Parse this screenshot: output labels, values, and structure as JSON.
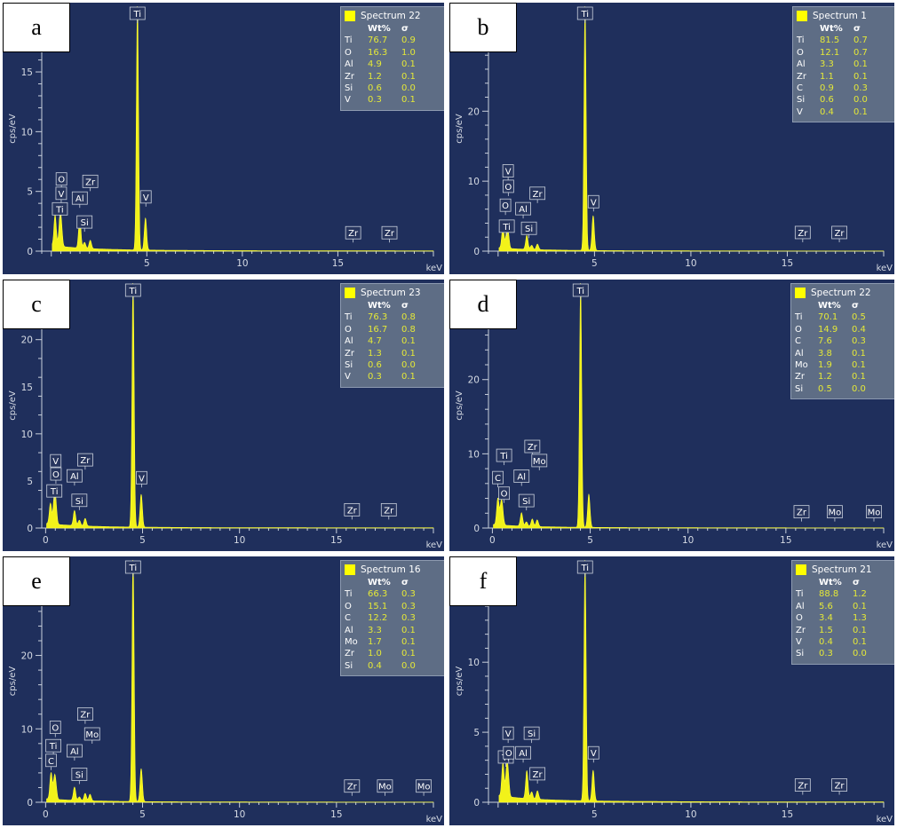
{
  "legend_header": {
    "wt": "Wt%",
    "sigma": "σ"
  },
  "chart_data": [
    {
      "panel": "a",
      "type": "line",
      "ylabel": "cps/eV",
      "xlabel": "keV",
      "xlim": [
        -0.5,
        20
      ],
      "ylim": [
        0,
        20.5
      ],
      "xticks": [
        5,
        10,
        15
      ],
      "yticks": [
        0,
        5,
        10,
        15
      ],
      "spectrum": "Spectrum 22",
      "composition": [
        {
          "el": "Ti",
          "wt": "76.7",
          "sigma": "0.9"
        },
        {
          "el": "O",
          "wt": "16.3",
          "sigma": "1.0"
        },
        {
          "el": "Al",
          "wt": "4.9",
          "sigma": "0.1"
        },
        {
          "el": "Zr",
          "wt": "1.2",
          "sigma": "0.1"
        },
        {
          "el": "Si",
          "wt": "0.6",
          "sigma": "0.0"
        },
        {
          "el": "V",
          "wt": "0.3",
          "sigma": "0.1"
        }
      ],
      "peaks": [
        {
          "x": 0.2,
          "y": 2.6
        },
        {
          "x": 0.45,
          "y": 2.0
        },
        {
          "x": 0.52,
          "y": 1.5
        },
        {
          "x": 1.49,
          "y": 2.6
        },
        {
          "x": 1.74,
          "y": 0.5
        },
        {
          "x": 2.04,
          "y": 0.7
        },
        {
          "x": 4.51,
          "y": 20.5
        },
        {
          "x": 4.93,
          "y": 2.7
        }
      ],
      "labels": [
        {
          "t": "Ti",
          "x": 4.51,
          "y": 20.5
        },
        {
          "t": "O",
          "x": 0.53,
          "y": 5.3
        },
        {
          "t": "Ti",
          "x": 0.45,
          "y": 2.8
        },
        {
          "t": "V",
          "x": 0.52,
          "y": 4.1
        },
        {
          "t": "Al",
          "x": 1.49,
          "y": 3.7
        },
        {
          "t": "Si",
          "x": 1.74,
          "y": 1.7
        },
        {
          "t": "Zr",
          "x": 2.04,
          "y": 5.1
        },
        {
          "t": "V",
          "x": 4.95,
          "y": 3.8
        },
        {
          "t": "Zr",
          "x": 15.8,
          "y": 0.8
        },
        {
          "t": "Zr",
          "x": 17.7,
          "y": 0.8
        }
      ]
    },
    {
      "panel": "b",
      "type": "line",
      "ylabel": "cps/eV",
      "xlabel": "keV",
      "xlim": [
        -0.5,
        20
      ],
      "ylim": [
        0,
        35
      ],
      "xticks": [
        5,
        10,
        15
      ],
      "yticks": [
        0,
        10,
        20,
        30
      ],
      "spectrum": "Spectrum 1",
      "composition": [
        {
          "el": "Ti",
          "wt": "81.5",
          "sigma": "0.7"
        },
        {
          "el": "O",
          "wt": "12.1",
          "sigma": "0.7"
        },
        {
          "el": "Al",
          "wt": "3.3",
          "sigma": "0.1"
        },
        {
          "el": "Zr",
          "wt": "1.1",
          "sigma": "0.1"
        },
        {
          "el": "C",
          "wt": "0.9",
          "sigma": "0.3"
        },
        {
          "el": "Si",
          "wt": "0.6",
          "sigma": "0.0"
        },
        {
          "el": "V",
          "wt": "0.4",
          "sigma": "0.1"
        }
      ],
      "peaks": [
        {
          "x": 0.25,
          "y": 3.0
        },
        {
          "x": 0.45,
          "y": 2.0
        },
        {
          "x": 0.52,
          "y": 1.8
        },
        {
          "x": 1.49,
          "y": 2.0
        },
        {
          "x": 1.74,
          "y": 0.6
        },
        {
          "x": 2.04,
          "y": 0.8
        },
        {
          "x": 4.51,
          "y": 35
        },
        {
          "x": 4.93,
          "y": 5
        }
      ],
      "labels": [
        {
          "t": "Ti",
          "x": 4.51,
          "y": 35
        },
        {
          "t": "V",
          "x": 0.52,
          "y": 10.2
        },
        {
          "t": "O",
          "x": 0.53,
          "y": 8.0
        },
        {
          "t": "O",
          "x": 0.38,
          "y": 5.3
        },
        {
          "t": "Ti",
          "x": 0.45,
          "y": 2.3
        },
        {
          "t": "Al",
          "x": 1.3,
          "y": 4.8
        },
        {
          "t": "Si",
          "x": 1.6,
          "y": 2.0
        },
        {
          "t": "Zr",
          "x": 2.04,
          "y": 7.0
        },
        {
          "t": "V",
          "x": 4.95,
          "y": 5.8
        },
        {
          "t": "Zr",
          "x": 15.8,
          "y": 1.4
        },
        {
          "t": "Zr",
          "x": 17.7,
          "y": 1.4
        }
      ]
    },
    {
      "panel": "c",
      "type": "line",
      "ylabel": "cps/eV",
      "xlabel": "keV",
      "xlim": [
        -0.2,
        20
      ],
      "ylim": [
        0,
        26
      ],
      "xticks": [
        0,
        5,
        10,
        15
      ],
      "yticks": [
        0,
        5,
        10,
        15,
        20
      ],
      "spectrum": "Spectrum 23",
      "composition": [
        {
          "el": "Ti",
          "wt": "76.3",
          "sigma": "0.8"
        },
        {
          "el": "O",
          "wt": "16.7",
          "sigma": "0.8"
        },
        {
          "el": "Al",
          "wt": "4.7",
          "sigma": "0.1"
        },
        {
          "el": "Zr",
          "wt": "1.3",
          "sigma": "0.1"
        },
        {
          "el": "Si",
          "wt": "0.6",
          "sigma": "0.0"
        },
        {
          "el": "V",
          "wt": "0.3",
          "sigma": "0.1"
        }
      ],
      "peaks": [
        {
          "x": 0.25,
          "y": 2.2
        },
        {
          "x": 0.45,
          "y": 2.6
        },
        {
          "x": 0.52,
          "y": 1.8
        },
        {
          "x": 1.49,
          "y": 1.6
        },
        {
          "x": 1.74,
          "y": 0.6
        },
        {
          "x": 2.04,
          "y": 0.8
        },
        {
          "x": 4.51,
          "y": 26
        },
        {
          "x": 4.93,
          "y": 3.5
        }
      ],
      "labels": [
        {
          "t": "Ti",
          "x": 4.51,
          "y": 26
        },
        {
          "t": "V",
          "x": 0.52,
          "y": 6.2
        },
        {
          "t": "O",
          "x": 0.53,
          "y": 4.8
        },
        {
          "t": "Ti",
          "x": 0.45,
          "y": 3.0
        },
        {
          "t": "Al",
          "x": 1.49,
          "y": 4.6
        },
        {
          "t": "Si",
          "x": 1.74,
          "y": 2.0
        },
        {
          "t": "Zr",
          "x": 2.04,
          "y": 6.3
        },
        {
          "t": "V",
          "x": 4.95,
          "y": 4.4
        },
        {
          "t": "Zr",
          "x": 15.8,
          "y": 1.0
        },
        {
          "t": "Zr",
          "x": 17.7,
          "y": 1.0
        }
      ]
    },
    {
      "panel": "d",
      "type": "line",
      "ylabel": "cps/eV",
      "xlabel": "keV",
      "xlim": [
        -0.2,
        20
      ],
      "ylim": [
        0,
        33
      ],
      "xticks": [
        0,
        5,
        10,
        15
      ],
      "yticks": [
        0,
        10,
        20
      ],
      "spectrum": "Spectrum 22",
      "composition": [
        {
          "el": "Ti",
          "wt": "70.1",
          "sigma": "0.5"
        },
        {
          "el": "O",
          "wt": "14.9",
          "sigma": "0.4"
        },
        {
          "el": "C",
          "wt": "7.6",
          "sigma": "0.3"
        },
        {
          "el": "Al",
          "wt": "3.8",
          "sigma": "0.1"
        },
        {
          "el": "Mo",
          "wt": "1.9",
          "sigma": "0.1"
        },
        {
          "el": "Zr",
          "wt": "1.2",
          "sigma": "0.1"
        },
        {
          "el": "Si",
          "wt": "0.5",
          "sigma": "0.0"
        }
      ],
      "peaks": [
        {
          "x": 0.28,
          "y": 3.6
        },
        {
          "x": 0.45,
          "y": 2.6
        },
        {
          "x": 0.52,
          "y": 1.4
        },
        {
          "x": 1.49,
          "y": 1.8
        },
        {
          "x": 1.74,
          "y": 0.6
        },
        {
          "x": 2.04,
          "y": 1.0
        },
        {
          "x": 2.29,
          "y": 0.9
        },
        {
          "x": 4.51,
          "y": 33
        },
        {
          "x": 4.93,
          "y": 4.5
        }
      ],
      "labels": [
        {
          "t": "Ti",
          "x": 4.51,
          "y": 33
        },
        {
          "t": "Ti",
          "x": 0.6,
          "y": 8.6
        },
        {
          "t": "C",
          "x": 0.28,
          "y": 5.6
        },
        {
          "t": "O",
          "x": 0.6,
          "y": 3.5
        },
        {
          "t": "Al",
          "x": 1.49,
          "y": 5.8
        },
        {
          "t": "Si",
          "x": 1.74,
          "y": 2.5
        },
        {
          "t": "Zr",
          "x": 2.04,
          "y": 9.8
        },
        {
          "t": "Mo",
          "x": 2.4,
          "y": 7.9
        },
        {
          "t": "Zr",
          "x": 15.8,
          "y": 1.0
        },
        {
          "t": "Mo",
          "x": 17.5,
          "y": 1.0
        },
        {
          "t": "Mo",
          "x": 19.5,
          "y": 1.0
        }
      ]
    },
    {
      "panel": "e",
      "type": "line",
      "ylabel": "cps/eV",
      "xlabel": "keV",
      "xlim": [
        -0.2,
        20
      ],
      "ylim": [
        0,
        33
      ],
      "xticks": [
        0,
        5,
        10,
        15
      ],
      "yticks": [
        0,
        10,
        20
      ],
      "spectrum": "Spectrum 16",
      "composition": [
        {
          "el": "Ti",
          "wt": "66.3",
          "sigma": "0.3"
        },
        {
          "el": "O",
          "wt": "15.1",
          "sigma": "0.3"
        },
        {
          "el": "C",
          "wt": "12.2",
          "sigma": "0.3"
        },
        {
          "el": "Al",
          "wt": "3.3",
          "sigma": "0.1"
        },
        {
          "el": "Mo",
          "wt": "1.7",
          "sigma": "0.1"
        },
        {
          "el": "Zr",
          "wt": "1.0",
          "sigma": "0.1"
        },
        {
          "el": "Si",
          "wt": "0.4",
          "sigma": "0.0"
        }
      ],
      "peaks": [
        {
          "x": 0.28,
          "y": 3.6
        },
        {
          "x": 0.45,
          "y": 2.4
        },
        {
          "x": 0.52,
          "y": 1.6
        },
        {
          "x": 1.49,
          "y": 1.8
        },
        {
          "x": 1.74,
          "y": 0.5
        },
        {
          "x": 2.04,
          "y": 1.0
        },
        {
          "x": 2.29,
          "y": 0.9
        },
        {
          "x": 4.51,
          "y": 33
        },
        {
          "x": 4.93,
          "y": 4.5
        }
      ],
      "labels": [
        {
          "t": "Ti",
          "x": 4.51,
          "y": 33
        },
        {
          "t": "O",
          "x": 0.5,
          "y": 9.0
        },
        {
          "t": "Ti",
          "x": 0.4,
          "y": 6.5
        },
        {
          "t": "C",
          "x": 0.28,
          "y": 4.5
        },
        {
          "t": "Al",
          "x": 1.49,
          "y": 5.8
        },
        {
          "t": "Si",
          "x": 1.74,
          "y": 2.6
        },
        {
          "t": "Zr",
          "x": 2.04,
          "y": 10.8
        },
        {
          "t": "Mo",
          "x": 2.4,
          "y": 8.1
        },
        {
          "t": "Zr",
          "x": 15.8,
          "y": 1.0
        },
        {
          "t": "Mo",
          "x": 17.5,
          "y": 1.0
        },
        {
          "t": "Mo",
          "x": 19.5,
          "y": 1.0
        }
      ]
    },
    {
      "panel": "f",
      "type": "line",
      "ylabel": "cps/eV",
      "xlabel": "keV",
      "xlim": [
        -0.5,
        20
      ],
      "ylim": [
        0,
        17.3
      ],
      "xticks": [
        5,
        10,
        15
      ],
      "yticks": [
        0,
        5,
        10
      ],
      "spectrum": "Spectrum 21",
      "composition": [
        {
          "el": "Ti",
          "wt": "88.8",
          "sigma": "1.2"
        },
        {
          "el": "Al",
          "wt": "5.6",
          "sigma": "0.1"
        },
        {
          "el": "O",
          "wt": "3.4",
          "sigma": "1.3"
        },
        {
          "el": "Zr",
          "wt": "1.5",
          "sigma": "0.1"
        },
        {
          "el": "V",
          "wt": "0.4",
          "sigma": "0.1"
        },
        {
          "el": "Si",
          "wt": "0.3",
          "sigma": "0.0"
        }
      ],
      "peaks": [
        {
          "x": 0.25,
          "y": 2.4
        },
        {
          "x": 0.45,
          "y": 1.8
        },
        {
          "x": 0.52,
          "y": 1.2
        },
        {
          "x": 1.49,
          "y": 2.0
        },
        {
          "x": 1.74,
          "y": 0.5
        },
        {
          "x": 2.04,
          "y": 0.6
        },
        {
          "x": 4.51,
          "y": 17.3
        },
        {
          "x": 4.93,
          "y": 2.2
        }
      ],
      "labels": [
        {
          "t": "Ti",
          "x": 4.51,
          "y": 17.3
        },
        {
          "t": "V",
          "x": 0.52,
          "y": 4.3
        },
        {
          "t": "Ti",
          "x": 0.4,
          "y": 2.6
        },
        {
          "t": "O",
          "x": 0.55,
          "y": 2.9
        },
        {
          "t": "Si",
          "x": 1.74,
          "y": 4.3
        },
        {
          "t": "Al",
          "x": 1.3,
          "y": 2.9
        },
        {
          "t": "Zr",
          "x": 2.04,
          "y": 1.4
        },
        {
          "t": "V",
          "x": 4.95,
          "y": 2.9
        },
        {
          "t": "Zr",
          "x": 15.8,
          "y": 0.6
        },
        {
          "t": "Zr",
          "x": 17.7,
          "y": 0.6
        }
      ]
    }
  ]
}
